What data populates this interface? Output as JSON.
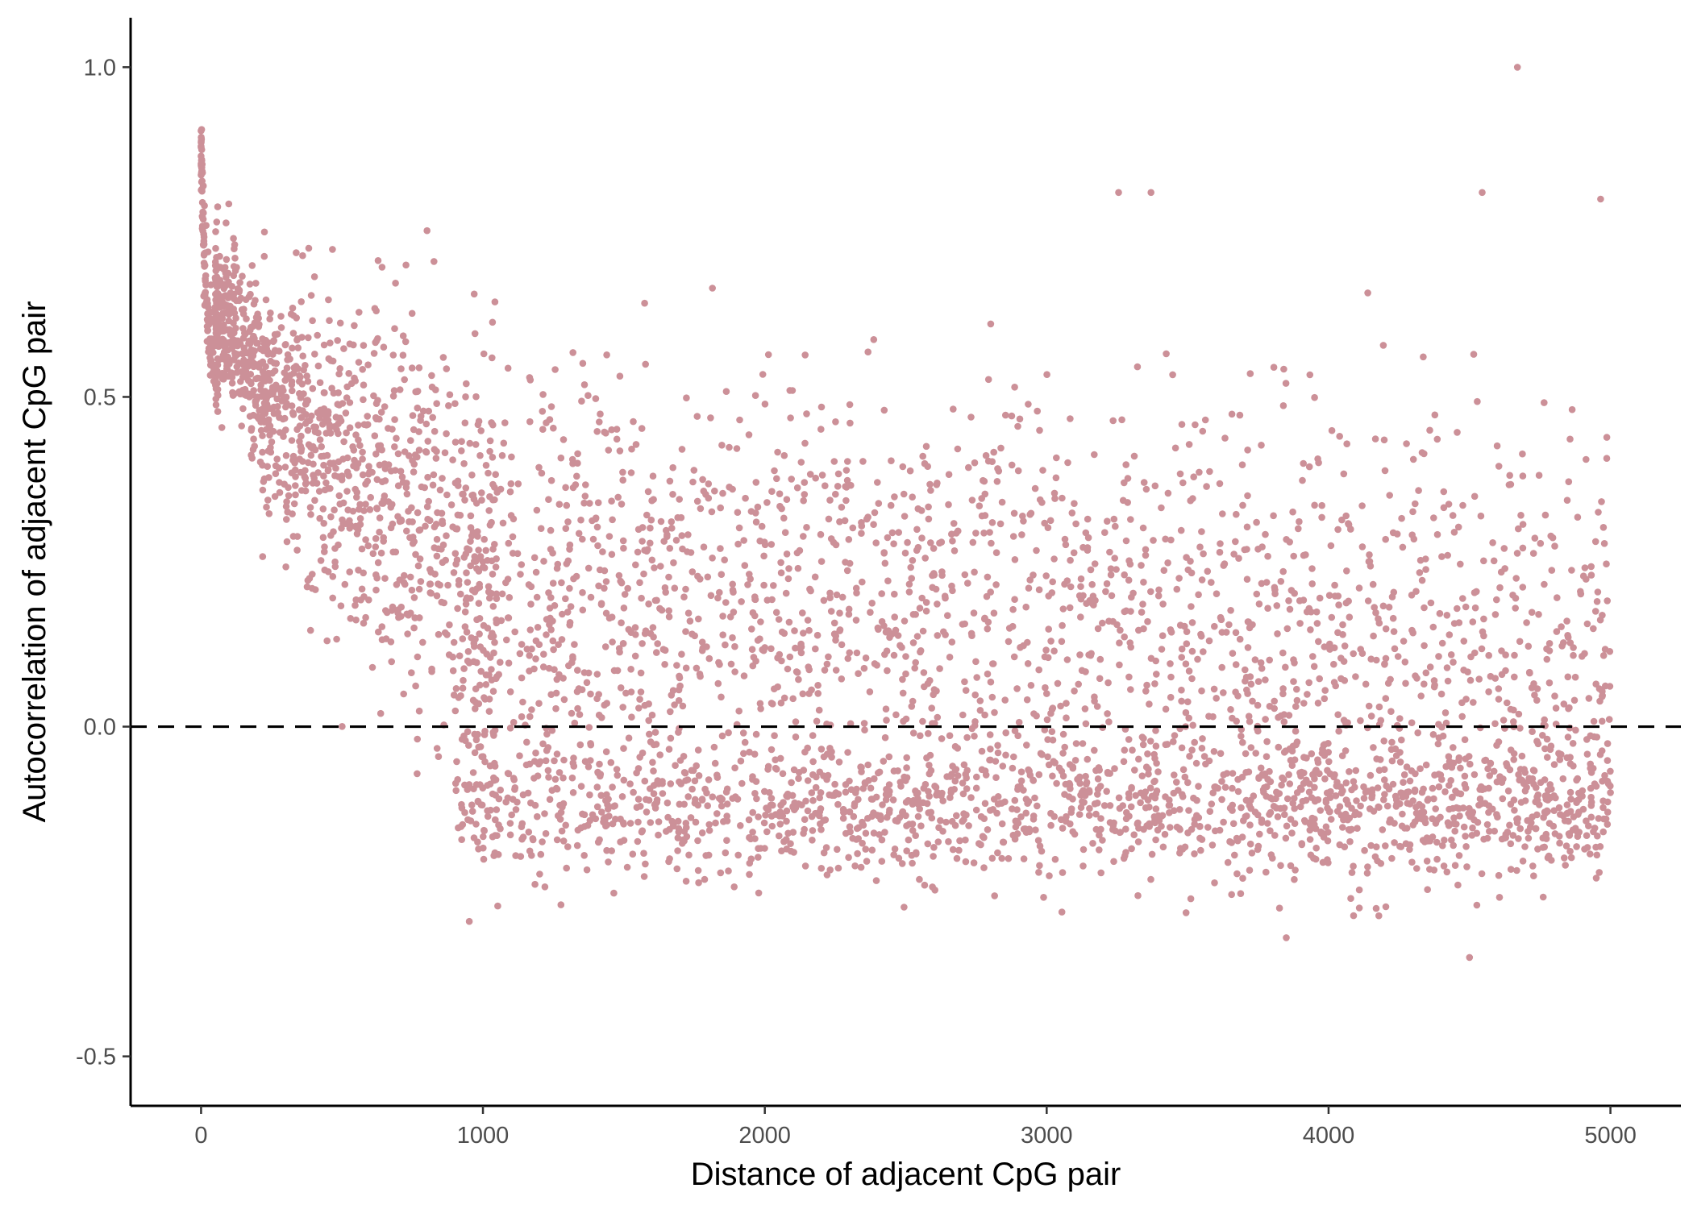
{
  "chart_data": {
    "type": "scatter",
    "title": "",
    "xlabel": "Distance of adjacent CpG pair",
    "ylabel": "Autocorrelation of adjacent CpG pair",
    "xlim": [
      -250,
      5250
    ],
    "ylim": [
      -0.575,
      1.075
    ],
    "x_ticks": [
      0,
      1000,
      2000,
      3000,
      4000,
      5000
    ],
    "x_tick_labels": [
      "0",
      "1000",
      "2000",
      "3000",
      "4000",
      "5000"
    ],
    "y_ticks": [
      -0.5,
      0.0,
      0.5,
      1.0
    ],
    "y_tick_labels": [
      "-0.5",
      "0.0",
      "0.5",
      "1.0"
    ],
    "grid": false,
    "legend": "none",
    "reference_line": {
      "y": 0,
      "style": "dashed",
      "color": "#000000"
    },
    "point_color": "#cc9098",
    "point_count_approx": 5000,
    "trend_description": "Autocorrelation starts near 0.85 at distance ~0, decays quickly to ~0.5 by 100 and keeps decreasing; points spread roughly between -0.25 and 0.6 at larger distances",
    "points_sample": [
      {
        "x": 0,
        "y": 0.88
      },
      {
        "x": 2,
        "y": 0.86
      },
      {
        "x": 5,
        "y": 0.84
      },
      {
        "x": 8,
        "y": 0.82
      },
      {
        "x": 12,
        "y": 0.79
      },
      {
        "x": 18,
        "y": 0.76
      },
      {
        "x": 25,
        "y": 0.72
      },
      {
        "x": 35,
        "y": 0.67
      },
      {
        "x": 50,
        "y": 0.62
      },
      {
        "x": 70,
        "y": 0.58
      },
      {
        "x": 100,
        "y": 0.55
      },
      {
        "x": 150,
        "y": 0.53
      },
      {
        "x": 200,
        "y": 0.5
      },
      {
        "x": 300,
        "y": 0.45
      },
      {
        "x": 500,
        "y": 0.38
      },
      {
        "x": 727,
        "y": 0.7
      },
      {
        "x": 1000,
        "y": 0.25
      },
      {
        "x": 1500,
        "y": 0.18
      },
      {
        "x": 2000,
        "y": 0.12
      },
      {
        "x": 2500,
        "y": 0.08
      },
      {
        "x": 3000,
        "y": 0.05
      },
      {
        "x": 3255,
        "y": 0.81
      },
      {
        "x": 3370,
        "y": 0.81
      },
      {
        "x": 3850,
        "y": -0.32
      },
      {
        "x": 4500,
        "y": -0.35
      },
      {
        "x": 4545,
        "y": 0.81
      },
      {
        "x": 4670,
        "y": 1.0
      },
      {
        "x": 4965,
        "y": 0.8
      },
      {
        "x": 5000,
        "y": -0.1
      }
    ]
  }
}
